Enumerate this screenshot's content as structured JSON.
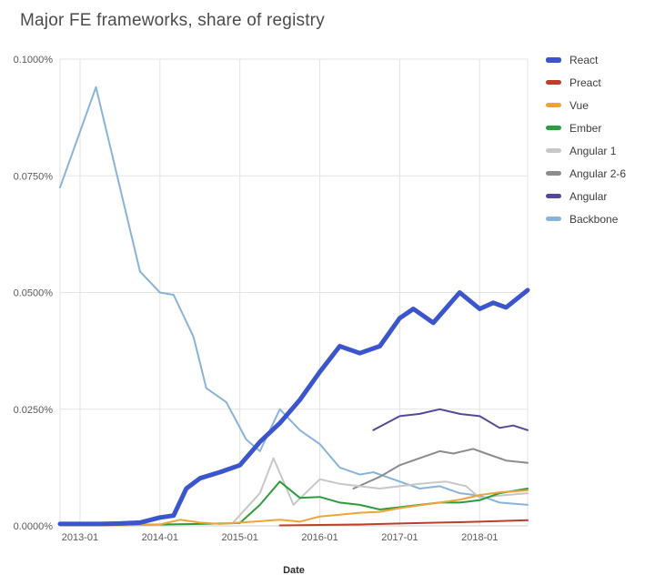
{
  "page_title": "Major FE frameworks, share of registry",
  "chart_data": {
    "type": "line",
    "title": "Major FE frameworks, share of registry",
    "xlabel": "Date",
    "ylabel": "",
    "xlim": [
      2012.75,
      2018.6
    ],
    "ylim": [
      0,
      0.1
    ],
    "grid": true,
    "legend_position": "right",
    "colors": {
      "grid": "#e3e3e3",
      "axis_line": "#cccccc",
      "title": "#4b4b4b",
      "tick": "#585858"
    },
    "x_ticks": [
      {
        "value": 2013,
        "label": "2013-01"
      },
      {
        "value": 2014,
        "label": "2014-01"
      },
      {
        "value": 2015,
        "label": "2015-01"
      },
      {
        "value": 2016,
        "label": "2016-01"
      },
      {
        "value": 2017,
        "label": "2017-01"
      },
      {
        "value": 2018,
        "label": "2018-01"
      }
    ],
    "y_ticks": [
      {
        "value": 0,
        "label": "0.0000%"
      },
      {
        "value": 0.025,
        "label": "0.0250%"
      },
      {
        "value": 0.05,
        "label": "0.0500%"
      },
      {
        "value": 0.075,
        "label": "0.0750%"
      },
      {
        "value": 0.1,
        "label": "0.1000%"
      }
    ],
    "series": [
      {
        "name": "React",
        "color": "#3b55cc",
        "width": 5,
        "points": [
          [
            2012.75,
            0.0004
          ],
          [
            2013,
            0.0004
          ],
          [
            2013.25,
            0.0004
          ],
          [
            2013.5,
            0.0005
          ],
          [
            2013.75,
            0.0007
          ],
          [
            2014,
            0.0018
          ],
          [
            2014.17,
            0.0022
          ],
          [
            2014.33,
            0.008
          ],
          [
            2014.5,
            0.0102
          ],
          [
            2014.75,
            0.0115
          ],
          [
            2015,
            0.013
          ],
          [
            2015.25,
            0.018
          ],
          [
            2015.5,
            0.022
          ],
          [
            2015.75,
            0.027
          ],
          [
            2016,
            0.033
          ],
          [
            2016.25,
            0.0385
          ],
          [
            2016.5,
            0.037
          ],
          [
            2016.75,
            0.0385
          ],
          [
            2017,
            0.0445
          ],
          [
            2017.17,
            0.0465
          ],
          [
            2017.42,
            0.0435
          ],
          [
            2017.75,
            0.05
          ],
          [
            2018,
            0.0465
          ],
          [
            2018.17,
            0.0478
          ],
          [
            2018.33,
            0.0468
          ],
          [
            2018.6,
            0.0505
          ]
        ]
      },
      {
        "name": "Preact",
        "color": "#bc3f2b",
        "width": 2,
        "points": [
          [
            2015.5,
            0.0001
          ],
          [
            2016,
            0.0002
          ],
          [
            2016.5,
            0.0003
          ],
          [
            2017,
            0.0005
          ],
          [
            2017.5,
            0.0007
          ],
          [
            2018,
            0.0009
          ],
          [
            2018.6,
            0.0012
          ]
        ]
      },
      {
        "name": "Vue",
        "color": "#efa339",
        "width": 2,
        "points": [
          [
            2012.75,
            0.0001
          ],
          [
            2013.5,
            0.0001
          ],
          [
            2014,
            0.0003
          ],
          [
            2014.25,
            0.0013
          ],
          [
            2014.5,
            0.0007
          ],
          [
            2014.75,
            0.0004
          ],
          [
            2015,
            0.0007
          ],
          [
            2015.25,
            0.001
          ],
          [
            2015.5,
            0.0013
          ],
          [
            2015.75,
            0.0009
          ],
          [
            2016,
            0.002
          ],
          [
            2016.25,
            0.0024
          ],
          [
            2016.5,
            0.0028
          ],
          [
            2016.75,
            0.003
          ],
          [
            2017,
            0.0038
          ],
          [
            2017.25,
            0.0044
          ],
          [
            2017.5,
            0.005
          ],
          [
            2017.75,
            0.0056
          ],
          [
            2018,
            0.0066
          ],
          [
            2018.25,
            0.0072
          ],
          [
            2018.6,
            0.0076
          ]
        ]
      },
      {
        "name": "Ember",
        "color": "#2d9c3c",
        "width": 2,
        "points": [
          [
            2012.75,
            0.0002
          ],
          [
            2013.5,
            0.0002
          ],
          [
            2014,
            0.0003
          ],
          [
            2014.5,
            0.0004
          ],
          [
            2015,
            0.0006
          ],
          [
            2015.25,
            0.0045
          ],
          [
            2015.5,
            0.0095
          ],
          [
            2015.75,
            0.006
          ],
          [
            2016,
            0.0062
          ],
          [
            2016.25,
            0.005
          ],
          [
            2016.5,
            0.0045
          ],
          [
            2016.75,
            0.0035
          ],
          [
            2017,
            0.004
          ],
          [
            2017.25,
            0.0045
          ],
          [
            2017.5,
            0.005
          ],
          [
            2017.75,
            0.005
          ],
          [
            2018,
            0.0055
          ],
          [
            2018.25,
            0.007
          ],
          [
            2018.6,
            0.008
          ]
        ]
      },
      {
        "name": "Angular 1",
        "color": "#c7c7c7",
        "width": 2,
        "points": [
          [
            2014.92,
            0.0008
          ],
          [
            2015.25,
            0.007
          ],
          [
            2015.42,
            0.0145
          ],
          [
            2015.67,
            0.0045
          ],
          [
            2016,
            0.01
          ],
          [
            2016.25,
            0.009
          ],
          [
            2016.5,
            0.0085
          ],
          [
            2016.75,
            0.008
          ],
          [
            2017,
            0.0085
          ],
          [
            2017.25,
            0.009
          ],
          [
            2017.58,
            0.0095
          ],
          [
            2017.83,
            0.0085
          ],
          [
            2018,
            0.006
          ],
          [
            2018.25,
            0.0065
          ],
          [
            2018.6,
            0.007
          ]
        ]
      },
      {
        "name": "Angular 2-6",
        "color": "#8c8c8c",
        "width": 2,
        "points": [
          [
            2016.42,
            0.008
          ],
          [
            2016.75,
            0.0105
          ],
          [
            2017,
            0.013
          ],
          [
            2017.25,
            0.0145
          ],
          [
            2017.5,
            0.016
          ],
          [
            2017.67,
            0.0155
          ],
          [
            2017.92,
            0.0165
          ],
          [
            2018.08,
            0.0155
          ],
          [
            2018.33,
            0.014
          ],
          [
            2018.6,
            0.0135
          ]
        ]
      },
      {
        "name": "Angular",
        "color": "#55489a",
        "width": 2,
        "points": [
          [
            2016.67,
            0.0205
          ],
          [
            2017,
            0.0235
          ],
          [
            2017.25,
            0.024
          ],
          [
            2017.5,
            0.025
          ],
          [
            2017.75,
            0.024
          ],
          [
            2018,
            0.0235
          ],
          [
            2018.25,
            0.021
          ],
          [
            2018.42,
            0.0215
          ],
          [
            2018.6,
            0.0205
          ]
        ]
      },
      {
        "name": "Backbone",
        "color": "#89b4da",
        "width": 2,
        "points": [
          [
            2012.75,
            0.0725
          ],
          [
            2013.2,
            0.094
          ],
          [
            2013.75,
            0.0545
          ],
          [
            2014,
            0.05
          ],
          [
            2014.17,
            0.0495
          ],
          [
            2014.42,
            0.0405
          ],
          [
            2014.58,
            0.0295
          ],
          [
            2014.83,
            0.0265
          ],
          [
            2015.08,
            0.0185
          ],
          [
            2015.25,
            0.016
          ],
          [
            2015.5,
            0.025
          ],
          [
            2015.75,
            0.0205
          ],
          [
            2016,
            0.0175
          ],
          [
            2016.25,
            0.0125
          ],
          [
            2016.5,
            0.011
          ],
          [
            2016.67,
            0.0115
          ],
          [
            2016.83,
            0.0105
          ],
          [
            2017,
            0.0095
          ],
          [
            2017.25,
            0.008
          ],
          [
            2017.5,
            0.0085
          ],
          [
            2017.75,
            0.007
          ],
          [
            2018,
            0.0065
          ],
          [
            2018.25,
            0.005
          ],
          [
            2018.6,
            0.0045
          ]
        ]
      }
    ]
  }
}
